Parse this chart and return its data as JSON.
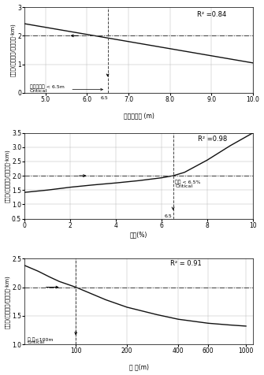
{
  "chart1": {
    "xlabel": "포장도로폭 (m)",
    "ylabel": "사고율(사고건수/백만자료·km)",
    "xlim": [
      4.5,
      10.0
    ],
    "ylim": [
      0.0,
      3.0
    ],
    "xticks": [
      5.0,
      6.0,
      7.0,
      8.0,
      9.0,
      10.0
    ],
    "xticklabels": [
      "5.0",
      "6.0",
      "7.0",
      "8.0",
      "9.0",
      "10.0"
    ],
    "yticks": [
      0.0,
      1.0,
      2.0,
      3.0
    ],
    "r2": "R² =0.84",
    "critical_x": 6.5,
    "critical_label": "포잡도로폭 < 6.5m",
    "critical_sub": "Critical",
    "ref_y": 2.0,
    "line_x": [
      4.5,
      10.0
    ],
    "line_y": [
      2.42,
      1.05
    ]
  },
  "chart2": {
    "xlabel": "경사(%)",
    "ylabel": "사고율(사고건수/백만자료·km)",
    "xlim": [
      0,
      10
    ],
    "ylim": [
      0.5,
      3.5
    ],
    "xticks": [
      0,
      2,
      4,
      6,
      8,
      10
    ],
    "yticks": [
      0.5,
      1.0,
      1.5,
      2.0,
      2.5,
      3.0,
      3.5
    ],
    "r2": "R² =0.98",
    "critical_x": 6.5,
    "critical_label": "경사 < 6.5%",
    "critical_sub": "Critical",
    "ref_y": 2.0,
    "curve_x": [
      0,
      1,
      2,
      3,
      4,
      5,
      6,
      6.5,
      7,
      8,
      9,
      10
    ],
    "curve_y": [
      1.42,
      1.5,
      1.6,
      1.68,
      1.75,
      1.83,
      1.93,
      2.0,
      2.12,
      2.55,
      3.05,
      3.5
    ]
  },
  "chart3": {
    "xlabel": "시 거(m)",
    "ylabel": "사고율(사고건수/백만자료·km)",
    "xlim_log": [
      50,
      1100
    ],
    "ylim": [
      1.0,
      2.5
    ],
    "xticks": [
      100,
      200,
      400,
      600,
      1000
    ],
    "xticklabels": [
      "100",
      "200",
      "400",
      "600",
      "1000"
    ],
    "yticks": [
      1.0,
      1.5,
      2.0,
      2.5
    ],
    "r2": "R² = 0.91",
    "critical_x": 100,
    "critical_label": "시 거<100m",
    "critical_sub": "Critical",
    "ref_y": 2.0,
    "curve_x": [
      50,
      60,
      70,
      80,
      100,
      150,
      200,
      300,
      400,
      600,
      800,
      1000
    ],
    "curve_y": [
      2.38,
      2.28,
      2.18,
      2.1,
      2.0,
      1.78,
      1.65,
      1.52,
      1.44,
      1.37,
      1.34,
      1.32
    ]
  },
  "bg_color": "#ffffff",
  "grid_color": "#bbbbbb",
  "line_color": "#111111",
  "dash_color": "#444444"
}
